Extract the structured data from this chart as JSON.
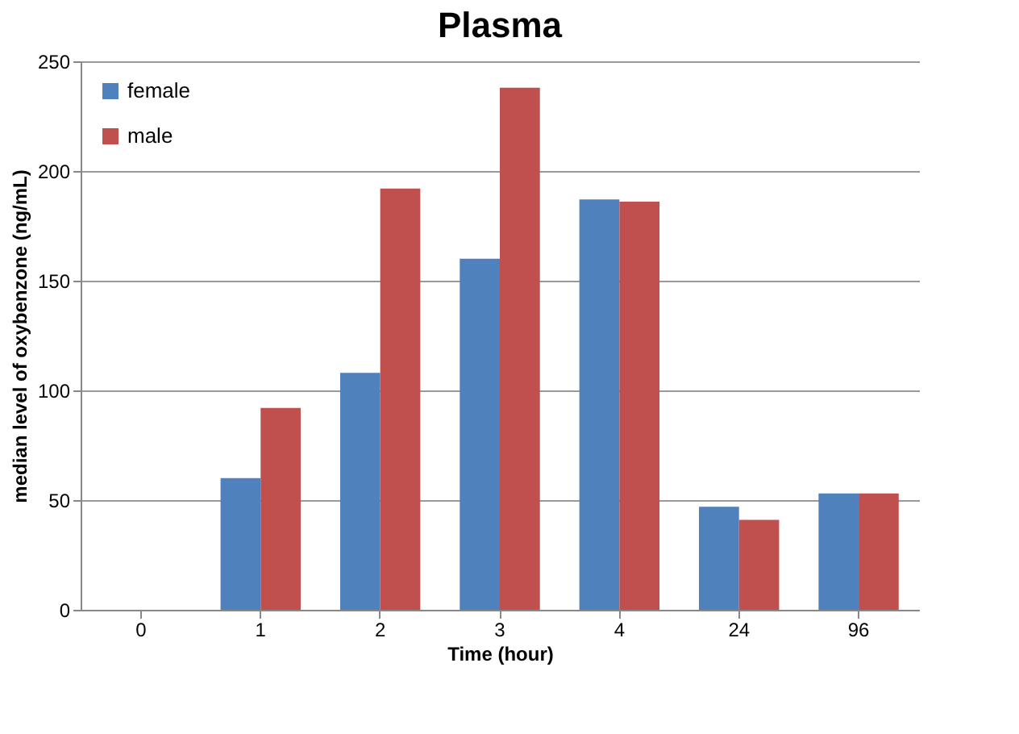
{
  "chart_data": {
    "type": "bar",
    "title": "Plasma",
    "xlabel": "Time (hour)",
    "ylabel": "median level of oxybenzone (ng/mL)",
    "categories": [
      "0",
      "1",
      "2",
      "3",
      "4",
      "24",
      "96"
    ],
    "series": [
      {
        "name": "female",
        "color": "#4f81bd",
        "values": [
          0,
          60,
          108,
          160,
          187,
          47,
          53
        ]
      },
      {
        "name": "male",
        "color": "#c0504d",
        "values": [
          0,
          92,
          192,
          238,
          186,
          41,
          53
        ]
      }
    ],
    "ylim": [
      0,
      250
    ],
    "yticks": [
      0,
      50,
      100,
      150,
      200,
      250
    ],
    "grid": "y",
    "legend": "top left"
  }
}
